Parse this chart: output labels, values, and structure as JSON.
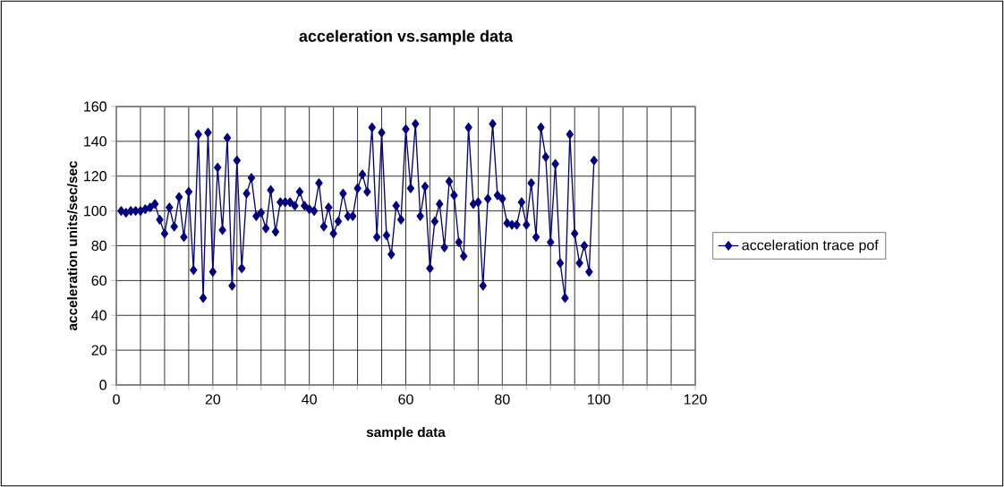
{
  "chart_data": {
    "type": "line",
    "title": "acceleration vs.sample data",
    "xlabel": "sample data",
    "ylabel": "acceleration units/sec/sec",
    "x": [
      1,
      2,
      3,
      4,
      5,
      6,
      7,
      8,
      9,
      10,
      11,
      12,
      13,
      14,
      15,
      16,
      17,
      18,
      19,
      20,
      21,
      22,
      23,
      24,
      25,
      26,
      27,
      28,
      29,
      30,
      31,
      32,
      33,
      34,
      35,
      36,
      37,
      38,
      39,
      40,
      41,
      42,
      43,
      44,
      45,
      46,
      47,
      48,
      49,
      50,
      51,
      52,
      53,
      54,
      55,
      56,
      57,
      58,
      59,
      60,
      61,
      62,
      63,
      64,
      65,
      66,
      67,
      68,
      69,
      70,
      71,
      72,
      73,
      74,
      75,
      76,
      77,
      78,
      79,
      80,
      81,
      82,
      83,
      84,
      85,
      86,
      87,
      88,
      89,
      90,
      91,
      92,
      93,
      94,
      95,
      96,
      97,
      98,
      99
    ],
    "series": [
      {
        "name": "acceleration trace pof",
        "color": "#000080",
        "values": [
          100,
          99,
          100,
          100,
          100,
          101,
          102,
          104,
          95,
          87,
          102,
          91,
          108,
          85,
          111,
          66,
          144,
          50,
          145,
          65,
          125,
          89,
          142,
          57,
          129,
          67,
          110,
          119,
          97,
          99,
          90,
          112,
          88,
          105,
          105,
          105,
          103,
          111,
          103,
          101,
          100,
          116,
          91,
          102,
          87,
          94,
          110,
          97,
          97,
          113,
          121,
          111,
          148,
          85,
          145,
          86,
          75,
          103,
          95,
          147,
          113,
          150,
          97,
          114,
          67,
          94,
          104,
          79,
          117,
          109,
          82,
          74,
          148,
          104,
          105,
          57,
          107,
          150,
          109,
          107,
          93,
          92,
          92,
          105,
          92,
          116,
          85,
          148,
          131,
          82,
          127,
          70,
          50,
          144,
          87,
          70,
          80,
          65,
          129
        ]
      }
    ],
    "xlim": [
      0,
      120
    ],
    "ylim": [
      0,
      160
    ],
    "xticks": [
      0,
      {
        "value": 5,
        "label": null
      },
      {
        "value": 10,
        "label": null
      },
      {
        "value": 15,
        "label": null
      },
      20,
      {
        "value": 25,
        "label": null
      },
      {
        "value": 30,
        "label": null
      },
      {
        "value": 35,
        "label": null
      },
      40,
      {
        "value": 45,
        "label": null
      },
      {
        "value": 50,
        "label": null
      },
      {
        "value": 55,
        "label": null
      },
      60,
      {
        "value": 65,
        "label": null
      },
      {
        "value": 70,
        "label": null
      },
      {
        "value": 75,
        "label": null
      },
      80,
      {
        "value": 85,
        "label": null
      },
      {
        "value": 90,
        "label": null
      },
      {
        "value": 95,
        "label": null
      },
      100,
      {
        "value": 105,
        "label": null
      },
      {
        "value": 110,
        "label": null
      },
      {
        "value": 115,
        "label": null
      },
      120
    ],
    "yticks": [
      0,
      20,
      40,
      60,
      80,
      100,
      120,
      140,
      160
    ],
    "grid": true,
    "legend": "right",
    "marker": "diamond",
    "line_style": "solid"
  }
}
